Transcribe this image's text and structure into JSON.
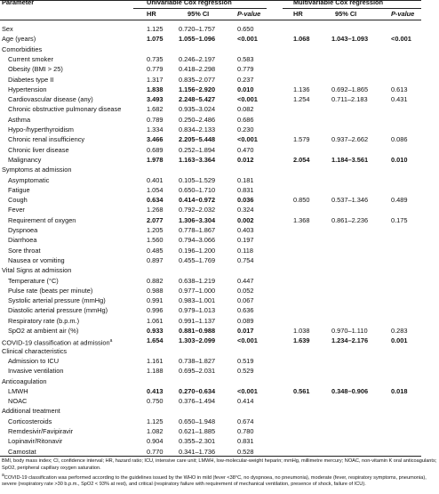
{
  "header": {
    "parameter": "Parameter",
    "uni": "Univariable Cox regression",
    "multi": "Multivariable Cox regression",
    "cols": [
      "HR",
      "95% CI",
      "P-value"
    ]
  },
  "rows": [
    {
      "label": "Sex",
      "uni": [
        "1.125",
        "0.720–1.757",
        "0.650"
      ]
    },
    {
      "label": "Age (years)",
      "uni": [
        "1.075",
        "1.055–1.096",
        "<0.001"
      ],
      "multi": [
        "1.068",
        "1.043–1.093",
        "<0.001"
      ],
      "uni_bold": true,
      "multi_bold": true
    },
    {
      "section": "Comorbidities"
    },
    {
      "label": "Current smoker",
      "indent": true,
      "uni": [
        "0.735",
        "0.246–2.197",
        "0.583"
      ]
    },
    {
      "label": "Obesity (BMI > 25)",
      "indent": true,
      "uni": [
        "0.779",
        "0.418–2.298",
        "0.779"
      ]
    },
    {
      "label": "Diabetes type II",
      "indent": true,
      "uni": [
        "1.317",
        "0.835–2.077",
        "0.237"
      ]
    },
    {
      "label": "Hypertension",
      "indent": true,
      "uni": [
        "1.838",
        "1.156–2.920",
        "0.010"
      ],
      "multi": [
        "1.136",
        "0.692–1.865",
        "0.613"
      ],
      "uni_bold": true
    },
    {
      "label": "Cardiovascular disease (any)",
      "indent": true,
      "uni": [
        "3.493",
        "2.248–5.427",
        "<0.001"
      ],
      "multi": [
        "1.254",
        "0.711–2.183",
        "0.431"
      ],
      "uni_bold": true
    },
    {
      "label": "Chronic obstructive pulmonary disease",
      "indent": true,
      "uni": [
        "1.682",
        "0.935–3.024",
        "0.082"
      ]
    },
    {
      "label": "Asthma",
      "indent": true,
      "uni": [
        "0.789",
        "0.250–2.486",
        "0.686"
      ]
    },
    {
      "label": "Hypo-/hyperthyroidism",
      "indent": true,
      "uni": [
        "1.334",
        "0.834–2.133",
        "0.230"
      ]
    },
    {
      "label": "Chronic renal insufficiency",
      "indent": true,
      "uni": [
        "3.466",
        "2.205–5.448",
        "<0.001"
      ],
      "multi": [
        "1.579",
        "0.937–2.662",
        "0.086"
      ],
      "uni_bold": true
    },
    {
      "label": "Chronic liver disease",
      "indent": true,
      "uni": [
        "0.689",
        "0.252–1.894",
        "0.470"
      ]
    },
    {
      "label": "Malignancy",
      "indent": true,
      "uni": [
        "1.978",
        "1.163–3.364",
        "0.012"
      ],
      "multi": [
        "2.054",
        "1.184–3.561",
        "0.010"
      ],
      "uni_bold": true,
      "multi_bold": true
    },
    {
      "section": "Symptoms at admission"
    },
    {
      "label": "Asymptomatic",
      "indent": true,
      "uni": [
        "0.401",
        "0.105–1.529",
        "0.181"
      ]
    },
    {
      "label": "Fatigue",
      "indent": true,
      "uni": [
        "1.054",
        "0.650–1.710",
        "0.831"
      ]
    },
    {
      "label": "Cough",
      "indent": true,
      "uni": [
        "0.634",
        "0.414–0.972",
        "0.036"
      ],
      "multi": [
        "0.850",
        "0.537–1.346",
        "0.489"
      ],
      "uni_bold": true
    },
    {
      "label": "Fever",
      "indent": true,
      "uni": [
        "1.268",
        "0.792–2.032",
        "0.324"
      ]
    },
    {
      "label": "Requirement of oxygen",
      "indent": true,
      "uni": [
        "2.077",
        "1.306–3.304",
        "0.002"
      ],
      "multi": [
        "1.368",
        "0.861–2.236",
        "0.175"
      ],
      "uni_bold": true
    },
    {
      "label": "Dyspnoea",
      "indent": true,
      "uni": [
        "1.205",
        "0.778–1.867",
        "0.403"
      ]
    },
    {
      "label": "Diarrhoea",
      "indent": true,
      "uni": [
        "1.560",
        "0.794–3.066",
        "0.197"
      ]
    },
    {
      "label": "Sore throat",
      "indent": true,
      "uni": [
        "0.485",
        "0.196–1.200",
        "0.118"
      ]
    },
    {
      "label": "Nausea or vomiting",
      "indent": true,
      "uni": [
        "0.897",
        "0.455–1.769",
        "0.754"
      ]
    },
    {
      "section": "Vital Signs at admission"
    },
    {
      "label": "Temperature (°C)",
      "indent": true,
      "uni": [
        "0.882",
        "0.638–1.219",
        "0.447"
      ]
    },
    {
      "label": "Pulse rate (beats per minute)",
      "indent": true,
      "uni": [
        "0.988",
        "0.977–1.000",
        "0.052"
      ]
    },
    {
      "label": "Systolic arterial pressure (mmHg)",
      "indent": true,
      "uni": [
        "0.991",
        "0.983–1.001",
        "0.067"
      ]
    },
    {
      "label": "Diastolic arterial pressure (mmHg)",
      "indent": true,
      "uni": [
        "0.996",
        "0.979–1.013",
        "0.636"
      ]
    },
    {
      "label": "Respiratory rate (b.p.m.)",
      "indent": true,
      "uni": [
        "1.061",
        "0.991–1.137",
        "0.089"
      ]
    },
    {
      "label": "SpO2 at ambient air (%)",
      "indent": true,
      "uni": [
        "0.933",
        "0.881–0.988",
        "0.017"
      ],
      "multi": [
        "1.038",
        "0.970–1.110",
        "0.283"
      ],
      "uni_bold": true
    },
    {
      "label": "COVID-19 classification at admission",
      "note": "a",
      "uni": [
        "1.654",
        "1.303–2.099",
        "<0.001"
      ],
      "multi": [
        "1.639",
        "1.234–2.176",
        "0.001"
      ],
      "uni_bold": true,
      "multi_bold": true
    },
    {
      "section": "Clinical characteristics"
    },
    {
      "label": "Admission to ICU",
      "indent": true,
      "uni": [
        "1.161",
        "0.738–1.827",
        "0.519"
      ]
    },
    {
      "label": "Invasive ventilation",
      "indent": true,
      "uni": [
        "1.188",
        "0.695–2.031",
        "0.529"
      ]
    },
    {
      "section": "Anticoagulation"
    },
    {
      "label": "LMWH",
      "indent": true,
      "uni": [
        "0.413",
        "0.270–0.634",
        "<0.001"
      ],
      "multi": [
        "0.561",
        "0.348–0.906",
        "0.018"
      ],
      "uni_bold": true,
      "multi_bold": true
    },
    {
      "label": "NOAC",
      "indent": true,
      "uni": [
        "0.750",
        "0.376–1.494",
        "0.414"
      ]
    },
    {
      "section": "Additional treatment"
    },
    {
      "label": "Corticosteroids",
      "indent": true,
      "uni": [
        "1.125",
        "0.650–1.948",
        "0.674"
      ]
    },
    {
      "label": "Remdesivir/Favipiravir",
      "indent": true,
      "uni": [
        "1.082",
        "0.621–1.885",
        "0.780"
      ]
    },
    {
      "label": "Lopinavir/Ritonavir",
      "indent": true,
      "uni": [
        "0.904",
        "0.355–2.301",
        "0.831"
      ]
    },
    {
      "label": "Camostat",
      "indent": true,
      "uni": [
        "0.770",
        "0.341–1.736",
        "0.528"
      ]
    }
  ],
  "footnotes": {
    "abbreviations": "BMI, body mass index; CI, confidence interval; HR, hazard ratio; ICU, intensive care unit; LMWH, low-molecular-weight heparin; mmHg, millimetre mercury; NOAC, non-vitamin K oral anticoagulants; SpO2, peripheral capillary oxygen saturation.",
    "note_mark": "a",
    "note": "COVID-19 classification was performed according to the guidelines issued by the WHO in mild (fever <38°C, no dyspnoea, no pneumonia), moderate (fever, respiratory symptoms, pneumonia), severe (respiratory rate >30 b.p.m., SpO2 < 93% at rest), and critical (respiratory failure with requirement of mechanical ventilation, presence of shock, failure of ICU)."
  }
}
